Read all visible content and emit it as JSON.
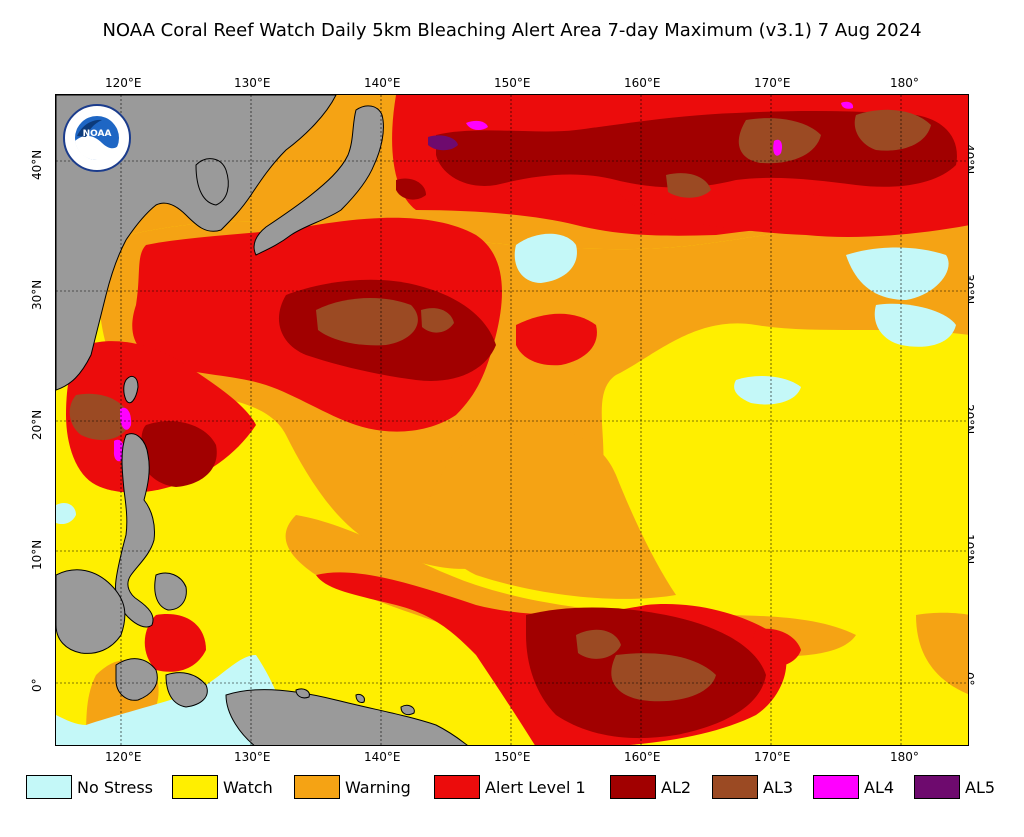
{
  "title": "NOAA Coral Reef Watch Daily 5km Bleaching Alert Area 7-day Maximum  (v3.1)   7 Aug 2024",
  "longitude_ticks": [
    "120°E",
    "130°E",
    "140°E",
    "150°E",
    "160°E",
    "170°E",
    "180°"
  ],
  "latitude_ticks": [
    "40°N",
    "30°N",
    "20°N",
    "10°N",
    "0°"
  ],
  "logo": {
    "name": "NOAA",
    "ring_text": "NATIONAL OCEANIC AND ATMOSPHERIC ADMINISTRATION · U.S. DEPARTMENT OF COMMERCE"
  },
  "colors": {
    "no_stress": "#c4f8f8",
    "watch": "#ffef00",
    "warning": "#f5a314",
    "alert1": "#ec0c0c",
    "al2": "#a10000",
    "al3": "#9b4a23",
    "al4": "#ff00ff",
    "al5": "#6e0a6e",
    "land": "#9a9a9a"
  },
  "legend": [
    {
      "label": "No Stress",
      "color": "#c4f8f8"
    },
    {
      "label": "Watch",
      "color": "#ffef00"
    },
    {
      "label": "Warning",
      "color": "#f5a314"
    },
    {
      "label": "Alert Level 1",
      "color": "#ec0c0c"
    },
    {
      "label": "AL2",
      "color": "#a10000"
    },
    {
      "label": "AL3",
      "color": "#9b4a23"
    },
    {
      "label": "AL4",
      "color": "#ff00ff"
    },
    {
      "label": "AL5",
      "color": "#6e0a6e"
    }
  ]
}
